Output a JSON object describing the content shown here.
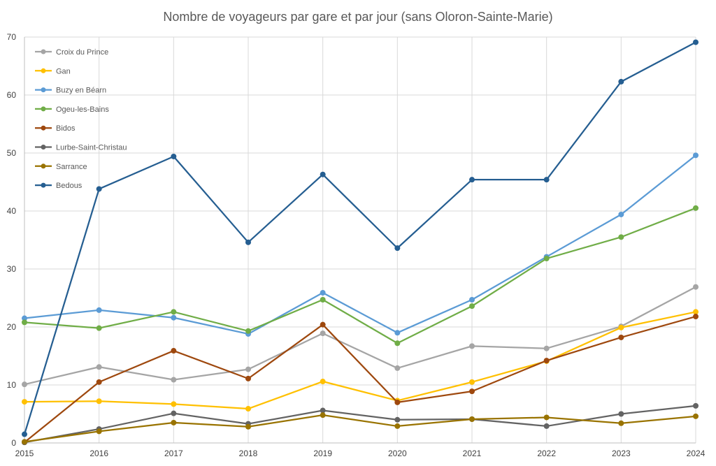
{
  "chart_data": {
    "type": "line",
    "title": "Nombre de voyageurs par gare et par jour (sans Oloron-Sainte-Marie)",
    "xlabel": "",
    "ylabel": "",
    "x": [
      "2015",
      "2016",
      "2017",
      "2018",
      "2019",
      "2020",
      "2021",
      "2022",
      "2023",
      "2024"
    ],
    "yticks": [
      "0",
      "10",
      "20",
      "30",
      "40",
      "50",
      "60",
      "70"
    ],
    "ylim": [
      0,
      70
    ],
    "grid": true,
    "legend_position": "top-left",
    "series": [
      {
        "name": "Croix du Prince",
        "color": "#A5A5A5",
        "values": [
          10.1,
          13.1,
          10.9,
          12.7,
          18.9,
          12.9,
          16.7,
          16.3,
          20.1,
          26.9
        ]
      },
      {
        "name": "Gan",
        "color": "#FFC000",
        "values": [
          7.1,
          7.2,
          6.7,
          5.9,
          10.6,
          7.3,
          10.5,
          14.1,
          19.9,
          22.6
        ]
      },
      {
        "name": "Buzy en Béarn",
        "color": "#5B9BD5",
        "values": [
          21.5,
          22.9,
          21.6,
          18.8,
          25.9,
          19.0,
          24.7,
          32.1,
          39.4,
          49.6
        ]
      },
      {
        "name": "Ogeu-les-Bains",
        "color": "#70AD47",
        "values": [
          20.8,
          19.8,
          22.6,
          19.3,
          24.7,
          17.2,
          23.6,
          31.8,
          35.5,
          40.5
        ]
      },
      {
        "name": "Bidos",
        "color": "#9E480E",
        "values": [
          0.1,
          10.5,
          15.9,
          11.1,
          20.4,
          7.0,
          8.9,
          14.2,
          18.2,
          21.8
        ]
      },
      {
        "name": "Lurbe-Saint-Christau",
        "color": "#636363",
        "values": [
          0.1,
          2.4,
          5.1,
          3.3,
          5.6,
          4.0,
          4.1,
          2.9,
          5.0,
          6.4
        ]
      },
      {
        "name": "Sarrance",
        "color": "#997300",
        "values": [
          0.2,
          2.0,
          3.5,
          2.8,
          4.8,
          2.9,
          4.1,
          4.4,
          3.4,
          4.6
        ]
      },
      {
        "name": "Bedous",
        "color": "#255E91",
        "values": [
          1.5,
          43.8,
          49.4,
          34.6,
          46.3,
          33.6,
          45.4,
          45.4,
          62.3,
          69.1
        ]
      }
    ]
  }
}
